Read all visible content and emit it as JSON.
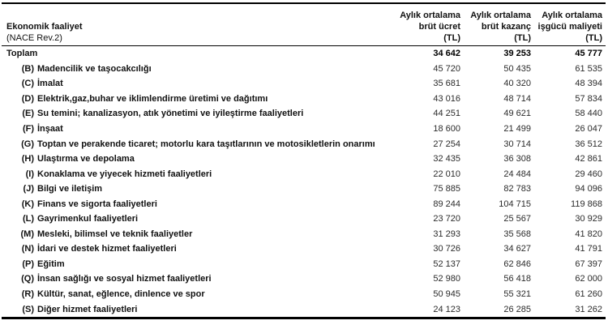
{
  "header": {
    "left_line1": "Ekonomik faaliyet",
    "left_line2": "(NACE Rev.2)",
    "columns": [
      {
        "line1": "Aylık ortalama",
        "line2": "brüt ücret",
        "line3": "(TL)"
      },
      {
        "line1": "Aylık ortalama",
        "line2": "brüt kazanç",
        "line3": "(TL)"
      },
      {
        "line1": "Aylık ortalama",
        "line2": "işgücü maliyeti",
        "line3": "(TL)"
      }
    ]
  },
  "table": {
    "total_row": {
      "label": "Toplam",
      "values": [
        "34 642",
        "39 253",
        "45 777"
      ]
    },
    "rows": [
      {
        "code": "(B)",
        "label": "Madencilik ve taşocakcılığı",
        "values": [
          "45 720",
          "50 435",
          "61 535"
        ]
      },
      {
        "code": "(C)",
        "label": "İmalat",
        "values": [
          "35 681",
          "40 320",
          "48 394"
        ]
      },
      {
        "code": "(D)",
        "label": "Elektrik,gaz,buhar ve iklimlendirme üretimi ve dağıtımı",
        "values": [
          "43 016",
          "48 714",
          "57 834"
        ]
      },
      {
        "code": "(E)",
        "label": "Su temini; kanalizasyon, atık yönetimi ve iyileştirme faaliyetleri",
        "values": [
          "44 251",
          "49 621",
          "58 440"
        ]
      },
      {
        "code": "(F)",
        "label": "İnşaat",
        "values": [
          "18 600",
          "21 499",
          "26 047"
        ]
      },
      {
        "code": "(G)",
        "label": "Toptan ve perakende ticaret; motorlu kara taşıtlarının ve motosikletlerin onarımı",
        "values": [
          "27 254",
          "30 714",
          "36 512"
        ]
      },
      {
        "code": "(H)",
        "label": "Ulaştırma ve depolama",
        "values": [
          "32 435",
          "36 308",
          "42 861"
        ]
      },
      {
        "code": "(I)",
        "label": "Konaklama ve yiyecek hizmeti faaliyetleri",
        "values": [
          "22 010",
          "24 484",
          "29 460"
        ]
      },
      {
        "code": "(J)",
        "label": "Bilgi ve iletişim",
        "values": [
          "75 885",
          "82 783",
          "94 096"
        ]
      },
      {
        "code": "(K)",
        "label": "Finans ve sigorta faaliyetleri",
        "values": [
          "89 244",
          "104 715",
          "119 868"
        ]
      },
      {
        "code": "(L)",
        "label": "Gayrimenkul faaliyetleri",
        "values": [
          "23 720",
          "25 567",
          "30 929"
        ]
      },
      {
        "code": "(M)",
        "label": "Mesleki, bilimsel ve teknik faaliyetler",
        "values": [
          "31 293",
          "35 568",
          "41 820"
        ]
      },
      {
        "code": "(N)",
        "label": "İdari ve destek hizmet faaliyetleri",
        "values": [
          "30 726",
          "34 627",
          "41 791"
        ]
      },
      {
        "code": "(P)",
        "label": "Eğitim",
        "values": [
          "52 137",
          "62 846",
          "67 397"
        ]
      },
      {
        "code": "(Q)",
        "label": "İnsan sağlığı ve sosyal hizmet faaliyetleri",
        "values": [
          "52 980",
          "56 418",
          "62 000"
        ]
      },
      {
        "code": "(R)",
        "label": "Kültür, sanat, eğlence, dinlence ve spor",
        "values": [
          "50 945",
          "55 321",
          "61 260"
        ]
      },
      {
        "code": "(S)",
        "label": "Diğer hizmet faaliyetleri",
        "values": [
          "24 123",
          "26 285",
          "31 262"
        ]
      }
    ]
  },
  "colors": {
    "text": "#111111",
    "border": "#000000",
    "background": "#ffffff"
  }
}
